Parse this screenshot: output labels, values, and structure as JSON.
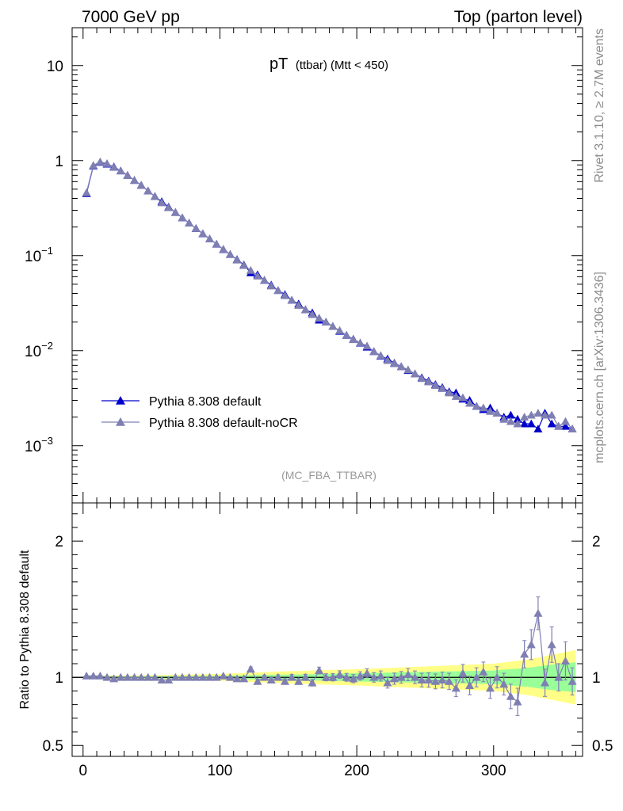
{
  "header": {
    "left": "7000 GeV pp",
    "right": "Top (parton level)"
  },
  "side_labels": {
    "top": "Rivet 3.1.10, ≥ 2.7M events",
    "bottom": "mcplots.cern.ch [arXiv:1306.3436]"
  },
  "chart_data": [
    {
      "type": "line",
      "panel": "main",
      "title_main": "pT",
      "title_sub": "(ttbar) (Mtt < 450)",
      "analysis_tag": "(MC_FBA_TTBAR)",
      "xlabel": "",
      "ylabel": "",
      "xlim": [
        -8,
        365
      ],
      "ylim": [
        0.00025,
        25
      ],
      "yscale": "log",
      "yticks": [
        {
          "value": 10,
          "label": "10"
        },
        {
          "value": 1,
          "label": "1"
        },
        {
          "value": 0.1,
          "label": "10",
          "exp": "−1"
        },
        {
          "value": 0.01,
          "label": "10",
          "exp": "−2"
        },
        {
          "value": 0.001,
          "label": "10",
          "exp": "−3"
        }
      ],
      "legend_position": "lower-left",
      "series": [
        {
          "name": "Pythia 8.308 default",
          "color": "#0000cc",
          "x": [
            2.5,
            7.5,
            12.5,
            17.5,
            22.5,
            27.5,
            32.5,
            37.5,
            42.5,
            47.5,
            52.5,
            57.5,
            62.5,
            67.5,
            72.5,
            77.5,
            82.5,
            87.5,
            92.5,
            97.5,
            102.5,
            107.5,
            112.5,
            117.5,
            122.5,
            127.5,
            132.5,
            137.5,
            142.5,
            147.5,
            152.5,
            157.5,
            162.5,
            167.5,
            172.5,
            177.5,
            182.5,
            187.5,
            192.5,
            197.5,
            202.5,
            207.5,
            212.5,
            217.5,
            222.5,
            227.5,
            232.5,
            237.5,
            242.5,
            247.5,
            252.5,
            257.5,
            262.5,
            267.5,
            272.5,
            277.5,
            282.5,
            287.5,
            292.5,
            297.5,
            302.5,
            307.5,
            312.5,
            317.5,
            322.5,
            327.5,
            332.5,
            337.5,
            342.5,
            347.5,
            352.5,
            357.5
          ],
          "y": [
            0.45,
            0.88,
            0.96,
            0.92,
            0.86,
            0.78,
            0.7,
            0.62,
            0.55,
            0.48,
            0.42,
            0.37,
            0.325,
            0.285,
            0.25,
            0.22,
            0.193,
            0.17,
            0.15,
            0.132,
            0.116,
            0.103,
            0.091,
            0.08,
            0.066,
            0.063,
            0.055,
            0.049,
            0.043,
            0.039,
            0.034,
            0.031,
            0.027,
            0.025,
            0.021,
            0.02,
            0.018,
            0.016,
            0.0145,
            0.0132,
            0.012,
            0.0109,
            0.0098,
            0.0088,
            0.0082,
            0.0074,
            0.0068,
            0.0062,
            0.0057,
            0.0052,
            0.0048,
            0.0044,
            0.0041,
            0.0037,
            0.0036,
            0.0031,
            0.003,
            0.0026,
            0.0024,
            0.0025,
            0.0022,
            0.002,
            0.0021,
            0.0019,
            0.0017,
            0.0017,
            0.0015,
            0.0022,
            0.0017,
            0.0016,
            0.0016,
            0.0015
          ]
        },
        {
          "name": "Pythia 8.308 default-noCR",
          "color": "#7f7fb2",
          "x": [
            2.5,
            7.5,
            12.5,
            17.5,
            22.5,
            27.5,
            32.5,
            37.5,
            42.5,
            47.5,
            52.5,
            57.5,
            62.5,
            67.5,
            72.5,
            77.5,
            82.5,
            87.5,
            92.5,
            97.5,
            102.5,
            107.5,
            112.5,
            117.5,
            122.5,
            127.5,
            132.5,
            137.5,
            142.5,
            147.5,
            152.5,
            157.5,
            162.5,
            167.5,
            172.5,
            177.5,
            182.5,
            187.5,
            192.5,
            197.5,
            202.5,
            207.5,
            212.5,
            217.5,
            222.5,
            227.5,
            232.5,
            237.5,
            242.5,
            247.5,
            252.5,
            257.5,
            262.5,
            267.5,
            272.5,
            277.5,
            282.5,
            287.5,
            292.5,
            297.5,
            302.5,
            307.5,
            312.5,
            317.5,
            322.5,
            327.5,
            332.5,
            337.5,
            342.5,
            347.5,
            352.5,
            357.5
          ],
          "y": [
            0.46,
            0.89,
            0.97,
            0.93,
            0.85,
            0.78,
            0.7,
            0.62,
            0.55,
            0.48,
            0.42,
            0.36,
            0.32,
            0.285,
            0.25,
            0.22,
            0.193,
            0.171,
            0.15,
            0.132,
            0.117,
            0.103,
            0.09,
            0.079,
            0.07,
            0.061,
            0.055,
            0.048,
            0.043,
            0.038,
            0.034,
            0.03,
            0.027,
            0.024,
            0.022,
            0.02,
            0.018,
            0.0163,
            0.0145,
            0.0131,
            0.0121,
            0.0112,
            0.0098,
            0.0089,
            0.0079,
            0.0073,
            0.0068,
            0.0063,
            0.0057,
            0.0051,
            0.0047,
            0.0043,
            0.004,
            0.0036,
            0.0033,
            0.0032,
            0.0028,
            0.0026,
            0.0025,
            0.0023,
            0.0022,
            0.0019,
            0.0018,
            0.0017,
            0.002,
            0.0021,
            0.0022,
            0.0021,
            0.0021,
            0.0016,
            0.0018,
            0.0015
          ]
        }
      ]
    },
    {
      "type": "line",
      "panel": "ratio",
      "ylabel": "Ratio to Pythia 8.308 default",
      "xlim": [
        -8,
        365
      ],
      "ylim": [
        0.42,
        2.28
      ],
      "yticks": [
        {
          "value": 0.5,
          "label": "0.5"
        },
        {
          "value": 1,
          "label": "1"
        },
        {
          "value": 2,
          "label": "2"
        }
      ],
      "xticks": [
        {
          "value": 0,
          "label": "0"
        },
        {
          "value": 100,
          "label": "100"
        },
        {
          "value": 200,
          "label": "200"
        },
        {
          "value": 300,
          "label": "300"
        }
      ],
      "reference_line": 1,
      "band_colors": {
        "inner": "#99ff99",
        "outer": "#ffff88"
      },
      "band_x": [
        0,
        50,
        100,
        150,
        200,
        250,
        300,
        325,
        340,
        360
      ],
      "band_inner": [
        0.008,
        0.008,
        0.012,
        0.02,
        0.03,
        0.04,
        0.05,
        0.07,
        0.09,
        0.11
      ],
      "band_outer": [
        0.012,
        0.015,
        0.025,
        0.045,
        0.06,
        0.08,
        0.1,
        0.13,
        0.16,
        0.2
      ],
      "series": [
        {
          "name": "Pythia 8.308 default-noCR",
          "color": "#7f7fb2",
          "x": [
            2.5,
            7.5,
            12.5,
            17.5,
            22.5,
            27.5,
            32.5,
            37.5,
            42.5,
            47.5,
            52.5,
            57.5,
            62.5,
            67.5,
            72.5,
            77.5,
            82.5,
            87.5,
            92.5,
            97.5,
            102.5,
            107.5,
            112.5,
            117.5,
            122.5,
            127.5,
            132.5,
            137.5,
            142.5,
            147.5,
            152.5,
            157.5,
            162.5,
            167.5,
            172.5,
            177.5,
            182.5,
            187.5,
            192.5,
            197.5,
            202.5,
            207.5,
            212.5,
            217.5,
            222.5,
            227.5,
            232.5,
            237.5,
            242.5,
            247.5,
            252.5,
            257.5,
            262.5,
            267.5,
            272.5,
            277.5,
            282.5,
            287.5,
            292.5,
            297.5,
            302.5,
            307.5,
            312.5,
            317.5,
            322.5,
            327.5,
            332.5,
            337.5,
            342.5,
            347.5,
            352.5,
            357.5
          ],
          "y": [
            1.01,
            1.01,
            1.01,
            1.0,
            0.99,
            1.0,
            1.0,
            1.0,
            1.0,
            1.0,
            1.0,
            0.98,
            0.98,
            1.0,
            1.0,
            1.0,
            1.0,
            1.0,
            1.0,
            1.0,
            1.01,
            1.0,
            0.99,
            0.99,
            1.06,
            0.97,
            1.0,
            0.98,
            1.0,
            0.97,
            1.0,
            0.97,
            1.0,
            0.96,
            1.05,
            1.0,
            1.0,
            1.02,
            1.0,
            0.99,
            1.01,
            1.03,
            1.0,
            1.01,
            0.96,
            0.99,
            1.0,
            1.02,
            1.0,
            0.98,
            0.98,
            0.97,
            0.98,
            0.97,
            0.92,
            1.03,
            0.94,
            1.0,
            1.04,
            0.92,
            1.0,
            0.95,
            0.86,
            0.82,
            1.17,
            1.24,
            1.47,
            0.96,
            1.24,
            1.0,
            1.12,
            0.97
          ],
          "err": [
            0.005,
            0.005,
            0.005,
            0.005,
            0.005,
            0.006,
            0.006,
            0.006,
            0.007,
            0.007,
            0.008,
            0.008,
            0.009,
            0.009,
            0.01,
            0.01,
            0.011,
            0.011,
            0.012,
            0.012,
            0.013,
            0.013,
            0.014,
            0.015,
            0.016,
            0.017,
            0.017,
            0.018,
            0.019,
            0.02,
            0.021,
            0.022,
            0.023,
            0.024,
            0.025,
            0.026,
            0.027,
            0.028,
            0.029,
            0.03,
            0.031,
            0.033,
            0.035,
            0.037,
            0.039,
            0.041,
            0.043,
            0.045,
            0.047,
            0.05,
            0.052,
            0.055,
            0.058,
            0.06,
            0.062,
            0.065,
            0.068,
            0.07,
            0.072,
            0.075,
            0.078,
            0.08,
            0.09,
            0.1,
            0.1,
            0.11,
            0.12,
            0.1,
            0.13,
            0.1,
            0.14,
            0.1
          ]
        }
      ]
    }
  ]
}
